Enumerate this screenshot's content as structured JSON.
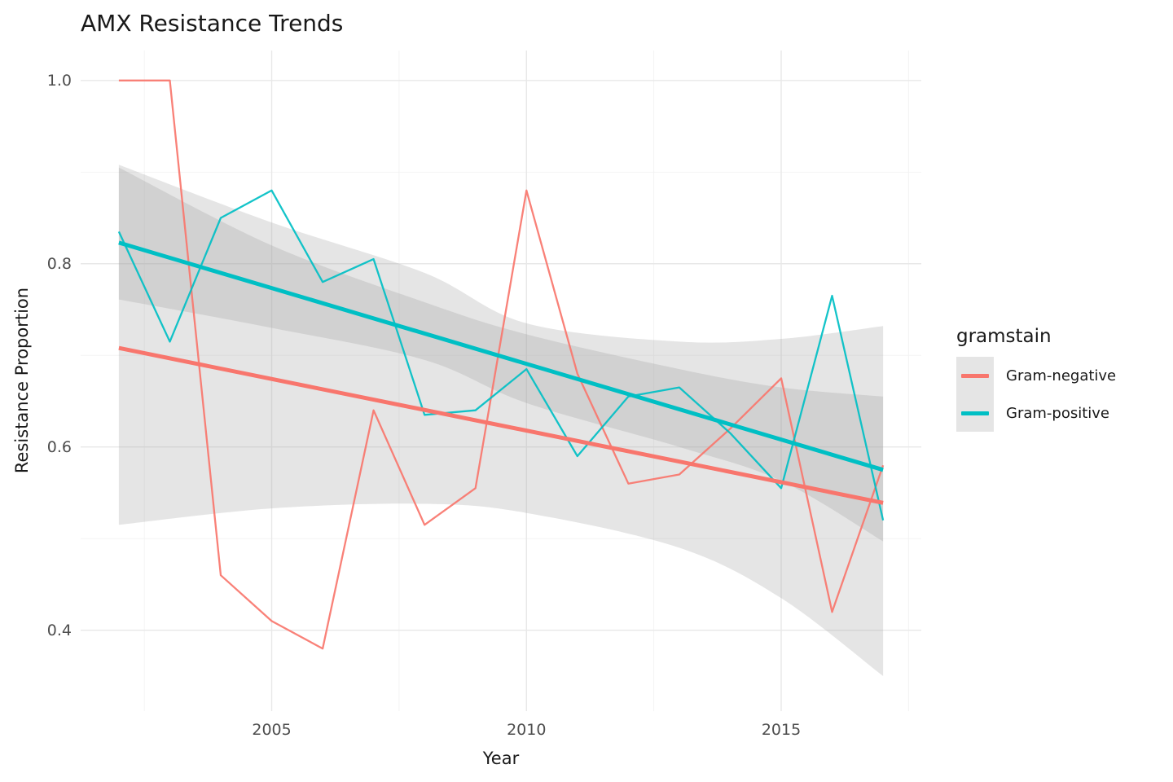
{
  "title": "AMX Resistance Trends",
  "axes": {
    "x": {
      "label": "Year",
      "lim": [
        2001.25,
        2017.75
      ],
      "ticks": [
        2005,
        2010,
        2015
      ],
      "tick_labels": [
        "2005",
        "2010",
        "2015"
      ],
      "minor": [
        2002.5,
        2007.5,
        2012.5,
        2017.5
      ]
    },
    "y": {
      "label": "Resistance Proportion",
      "lim": [
        0.3117,
        1.0327
      ],
      "ticks": [
        0.4,
        0.6,
        0.8,
        1.0
      ],
      "tick_labels": [
        "0.4",
        "0.6",
        "0.8",
        "1.0"
      ],
      "minor": [
        0.5,
        0.7,
        0.9
      ]
    }
  },
  "legend": {
    "title": "gramstain",
    "items": [
      {
        "label": "Gram-negative",
        "color": "#F8766D"
      },
      {
        "label": "Gram-positive",
        "color": "#00BFC4"
      }
    ]
  },
  "chart_data": {
    "type": "line",
    "title": "AMX Resistance Trends",
    "xlabel": "Year",
    "ylabel": "Resistance Proportion",
    "x": [
      2002,
      2003,
      2004,
      2005,
      2006,
      2007,
      2008,
      2009,
      2010,
      2011,
      2012,
      2013,
      2014,
      2015,
      2016,
      2017
    ],
    "series": [
      {
        "name": "Gram-negative",
        "color": "#F8766D",
        "values": [
          1.0,
          1.0,
          0.46,
          0.41,
          0.38,
          0.64,
          0.515,
          0.555,
          0.88,
          0.68,
          0.56,
          0.57,
          0.62,
          0.675,
          0.42,
          0.58
        ],
        "trend": {
          "x": [
            2002,
            2017
          ],
          "y": [
            0.708,
            0.539
          ]
        },
        "ci": {
          "x": [
            2002,
            2005,
            2008,
            2010,
            2013,
            2015,
            2017
          ],
          "lo": [
            0.515,
            0.533,
            0.538,
            0.528,
            0.49,
            0.435,
            0.35
          ],
          "hi": [
            0.905,
            0.82,
            0.758,
            0.723,
            0.685,
            0.665,
            0.655
          ]
        }
      },
      {
        "name": "Gram-positive",
        "color": "#00BFC4",
        "values": [
          0.835,
          0.715,
          0.85,
          0.88,
          0.78,
          0.805,
          0.635,
          0.64,
          0.685,
          0.59,
          0.655,
          0.665,
          0.615,
          0.555,
          0.765,
          0.52
        ],
        "trend": {
          "x": [
            2002,
            2017
          ],
          "y": [
            0.823,
            0.575
          ]
        },
        "ci": {
          "x": [
            2002,
            2005,
            2008,
            2010,
            2013,
            2015,
            2017
          ],
          "lo": [
            0.761,
            0.73,
            0.695,
            0.648,
            0.6,
            0.563,
            0.497
          ],
          "hi": [
            0.908,
            0.845,
            0.79,
            0.735,
            0.715,
            0.718,
            0.732
          ]
        }
      }
    ],
    "smoother": "lm with confidence ribbon",
    "legend_position": "right",
    "grid": "on"
  },
  "style": {
    "grid_major": "#e8e8e8",
    "grid_minor": "#f2f2f2",
    "ribbon_fill": "#999999",
    "ribbon_opacity": 0.25,
    "tick_text": "#4d4d4d",
    "text": "#191919",
    "background": "#ffffff"
  }
}
